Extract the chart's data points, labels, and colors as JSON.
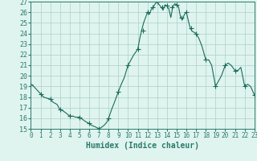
{
  "xlabel": "Humidex (Indice chaleur)",
  "bg_color": "#dff4ef",
  "grid_color": "#aacfc8",
  "line_color": "#1a6b5a",
  "marker_color": "#1a6b5a",
  "spine_color": "#2a7a6a",
  "ylim": [
    15,
    27
  ],
  "xlim": [
    0,
    23
  ],
  "yticks": [
    15,
    16,
    17,
    18,
    19,
    20,
    21,
    22,
    23,
    24,
    25,
    26,
    27
  ],
  "xticks": [
    0,
    1,
    2,
    3,
    4,
    5,
    6,
    7,
    8,
    9,
    10,
    11,
    12,
    13,
    14,
    15,
    16,
    17,
    18,
    19,
    20,
    21,
    22,
    23
  ],
  "x": [
    0,
    0.3,
    0.6,
    1.0,
    1.3,
    1.6,
    2.0,
    2.3,
    2.7,
    3.0,
    3.3,
    3.6,
    4.0,
    4.3,
    4.6,
    5.0,
    5.3,
    5.6,
    6.0,
    6.3,
    6.6,
    7.0,
    7.2,
    7.5,
    7.8,
    8.0,
    8.3,
    8.6,
    9.0,
    9.3,
    9.6,
    10.0,
    10.3,
    10.6,
    11.0,
    11.2,
    11.4,
    11.6,
    11.8,
    12.0,
    12.2,
    12.4,
    12.6,
    12.8,
    13.0,
    13.2,
    13.4,
    13.6,
    13.8,
    14.0,
    14.2,
    14.4,
    14.6,
    14.8,
    15.0,
    15.2,
    15.4,
    15.6,
    15.8,
    16.0,
    16.2,
    16.4,
    16.6,
    17.0,
    17.3,
    17.6,
    18.0,
    18.3,
    18.6,
    19.0,
    19.3,
    19.6,
    20.0,
    20.3,
    20.6,
    21.0,
    21.3,
    21.6,
    22.0,
    22.3,
    22.6,
    23.0
  ],
  "y": [
    19.2,
    19.0,
    18.7,
    18.3,
    18.0,
    17.9,
    17.8,
    17.5,
    17.3,
    16.8,
    16.7,
    16.5,
    16.2,
    16.2,
    16.1,
    16.1,
    15.9,
    15.7,
    15.5,
    15.3,
    15.2,
    15.0,
    15.1,
    15.3,
    15.6,
    16.0,
    16.8,
    17.5,
    18.5,
    19.2,
    19.8,
    21.0,
    21.5,
    22.0,
    22.5,
    23.5,
    24.3,
    25.0,
    25.5,
    26.0,
    25.8,
    26.3,
    26.5,
    26.8,
    27.0,
    26.7,
    26.5,
    26.2,
    26.7,
    26.6,
    26.3,
    25.5,
    26.5,
    26.8,
    26.7,
    26.5,
    25.5,
    25.3,
    25.8,
    26.0,
    25.2,
    24.5,
    24.2,
    24.0,
    23.5,
    22.8,
    21.5,
    21.5,
    21.0,
    19.0,
    19.5,
    20.0,
    21.0,
    21.2,
    21.0,
    20.5,
    20.5,
    20.8,
    19.0,
    19.2,
    19.0,
    18.2
  ],
  "marker_x": [
    0,
    1,
    2,
    3,
    4,
    5,
    6,
    7,
    8,
    9,
    10,
    11,
    11.5,
    12,
    12.5,
    13,
    13.5,
    14,
    14.5,
    15,
    15.5,
    16,
    16.5,
    17,
    18,
    19,
    20,
    21,
    22,
    23
  ],
  "marker_y": [
    19.2,
    18.3,
    17.8,
    16.8,
    16.2,
    16.1,
    15.5,
    15.0,
    16.0,
    18.5,
    21.0,
    22.5,
    24.3,
    26.0,
    26.5,
    27.0,
    26.5,
    26.6,
    26.5,
    26.7,
    25.5,
    26.0,
    24.5,
    24.0,
    21.5,
    19.0,
    21.0,
    20.5,
    19.0,
    18.2
  ]
}
